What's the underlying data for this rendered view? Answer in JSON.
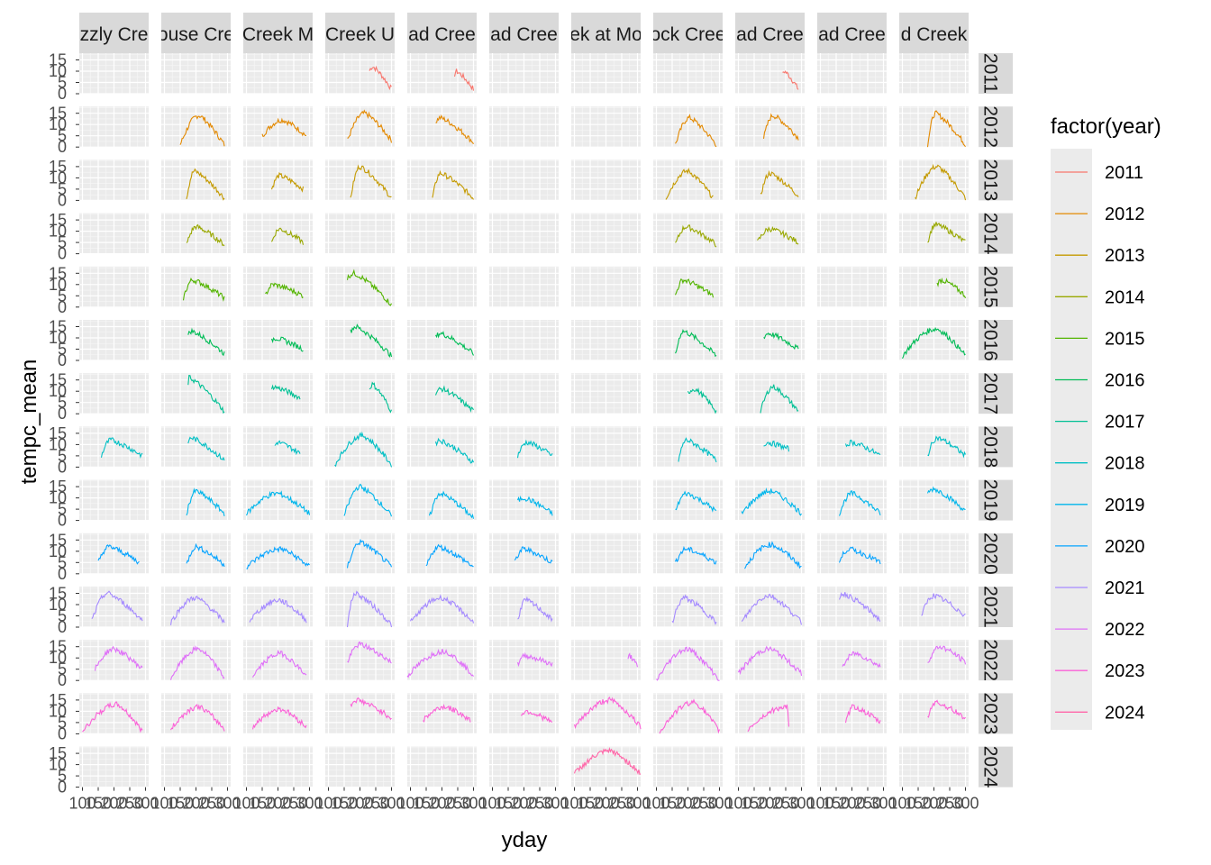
{
  "chart_data": {
    "type": "line",
    "xlabel": "yday",
    "ylabel": "tempc_mean",
    "legend_title": "factor(year)",
    "legend_position": "right",
    "grid": true,
    "x_ticks": [
      "100",
      "150",
      "200",
      "250",
      "300"
    ],
    "y_ticks": [
      "0",
      "5",
      "10",
      "15"
    ],
    "xlim": [
      90,
      310
    ],
    "ylim": [
      0,
      18
    ],
    "column_strips": [
      "zzly Cre",
      "ouse Cre",
      "Creek M",
      "Creek U",
      "ad Cree",
      "ad Cree",
      "ek at Mo",
      "ock Cree",
      "ad Cree",
      "ad Cree",
      "d Creek"
    ],
    "row_strips": [
      "2011",
      "2012",
      "2013",
      "2014",
      "2015",
      "2016",
      "2017",
      "2018",
      "2019",
      "2020",
      "2021",
      "2022",
      "2023",
      "2024"
    ],
    "series": [
      {
        "name": "2011",
        "color": "#F8766D"
      },
      {
        "name": "2012",
        "color": "#E38900"
      },
      {
        "name": "2013",
        "color": "#C49A00"
      },
      {
        "name": "2014",
        "color": "#99A800"
      },
      {
        "name": "2015",
        "color": "#53B400"
      },
      {
        "name": "2016",
        "color": "#00BC56"
      },
      {
        "name": "2017",
        "color": "#00C094"
      },
      {
        "name": "2018",
        "color": "#00BFC4"
      },
      {
        "name": "2019",
        "color": "#00B6EB"
      },
      {
        "name": "2020",
        "color": "#06A4FF"
      },
      {
        "name": "2021",
        "color": "#A58AFF"
      },
      {
        "name": "2022",
        "color": "#DF70F8"
      },
      {
        "name": "2023",
        "color": "#FB61D7"
      },
      {
        "name": "2024",
        "color": "#FF66A8"
      }
    ],
    "panels": [
      {
        "row": 0,
        "col": 3,
        "start": 230,
        "end": 300,
        "peak_x": 240,
        "peak_y": 12,
        "base": 2
      },
      {
        "row": 0,
        "col": 4,
        "start": 240,
        "end": 300,
        "peak_x": 245,
        "peak_y": 10,
        "base": 2
      },
      {
        "row": 0,
        "col": 8,
        "start": 240,
        "end": 290,
        "peak_x": 245,
        "peak_y": 10,
        "base": 2
      },
      {
        "row": 1,
        "col": 1,
        "start": 150,
        "end": 290,
        "peak_x": 210,
        "peak_y": 14,
        "base": 1
      },
      {
        "row": 1,
        "col": 2,
        "start": 150,
        "end": 290,
        "peak_x": 215,
        "peak_y": 12,
        "base": 5
      },
      {
        "row": 1,
        "col": 3,
        "start": 160,
        "end": 300,
        "peak_x": 215,
        "peak_y": 15,
        "base": 3
      },
      {
        "row": 1,
        "col": 4,
        "start": 180,
        "end": 300,
        "peak_x": 195,
        "peak_y": 13,
        "base": 2
      },
      {
        "row": 1,
        "col": 7,
        "start": 160,
        "end": 290,
        "peak_x": 205,
        "peak_y": 13,
        "base": 1
      },
      {
        "row": 1,
        "col": 8,
        "start": 180,
        "end": 290,
        "peak_x": 210,
        "peak_y": 14,
        "base": 4
      },
      {
        "row": 1,
        "col": 10,
        "start": 180,
        "end": 300,
        "peak_x": 205,
        "peak_y": 15,
        "base": 1
      },
      {
        "row": 2,
        "col": 1,
        "start": 170,
        "end": 290,
        "peak_x": 195,
        "peak_y": 13,
        "base": 1
      },
      {
        "row": 2,
        "col": 2,
        "start": 180,
        "end": 280,
        "peak_x": 205,
        "peak_y": 11,
        "base": 5
      },
      {
        "row": 2,
        "col": 3,
        "start": 170,
        "end": 300,
        "peak_x": 200,
        "peak_y": 15,
        "base": 1
      },
      {
        "row": 2,
        "col": 4,
        "start": 170,
        "end": 300,
        "peak_x": 195,
        "peak_y": 12,
        "base": 1
      },
      {
        "row": 2,
        "col": 7,
        "start": 130,
        "end": 280,
        "peak_x": 200,
        "peak_y": 13,
        "base": 1
      },
      {
        "row": 2,
        "col": 8,
        "start": 170,
        "end": 290,
        "peak_x": 200,
        "peak_y": 12,
        "base": 2
      },
      {
        "row": 2,
        "col": 10,
        "start": 140,
        "end": 300,
        "peak_x": 210,
        "peak_y": 15,
        "base": 1
      },
      {
        "row": 3,
        "col": 1,
        "start": 170,
        "end": 290,
        "peak_x": 200,
        "peak_y": 12,
        "base": 4
      },
      {
        "row": 3,
        "col": 2,
        "start": 180,
        "end": 280,
        "peak_x": 205,
        "peak_y": 11,
        "base": 5
      },
      {
        "row": 3,
        "col": 7,
        "start": 160,
        "end": 290,
        "peak_x": 195,
        "peak_y": 12,
        "base": 4
      },
      {
        "row": 3,
        "col": 8,
        "start": 160,
        "end": 290,
        "peak_x": 200,
        "peak_y": 11,
        "base": 5
      },
      {
        "row": 3,
        "col": 10,
        "start": 180,
        "end": 300,
        "peak_x": 205,
        "peak_y": 13,
        "base": 5
      },
      {
        "row": 4,
        "col": 1,
        "start": 160,
        "end": 290,
        "peak_x": 190,
        "peak_y": 12,
        "base": 4
      },
      {
        "row": 4,
        "col": 2,
        "start": 160,
        "end": 280,
        "peak_x": 185,
        "peak_y": 10,
        "base": 5
      },
      {
        "row": 4,
        "col": 3,
        "start": 160,
        "end": 300,
        "peak_x": 180,
        "peak_y": 15,
        "base": 1
      },
      {
        "row": 4,
        "col": 7,
        "start": 160,
        "end": 280,
        "peak_x": 185,
        "peak_y": 12,
        "base": 5
      },
      {
        "row": 4,
        "col": 10,
        "start": 210,
        "end": 300,
        "peak_x": 225,
        "peak_y": 12,
        "base": 5
      },
      {
        "row": 5,
        "col": 1,
        "start": 175,
        "end": 290,
        "peak_x": 185,
        "peak_y": 13,
        "base": 3
      },
      {
        "row": 5,
        "col": 2,
        "start": 180,
        "end": 280,
        "peak_x": 190,
        "peak_y": 10,
        "base": 5
      },
      {
        "row": 5,
        "col": 3,
        "start": 170,
        "end": 300,
        "peak_x": 185,
        "peak_y": 15,
        "base": 2
      },
      {
        "row": 5,
        "col": 4,
        "start": 180,
        "end": 300,
        "peak_x": 195,
        "peak_y": 12,
        "base": 3
      },
      {
        "row": 5,
        "col": 7,
        "start": 160,
        "end": 290,
        "peak_x": 185,
        "peak_y": 13,
        "base": 2
      },
      {
        "row": 5,
        "col": 8,
        "start": 180,
        "end": 290,
        "peak_x": 195,
        "peak_y": 12,
        "base": 5
      },
      {
        "row": 5,
        "col": 10,
        "start": 100,
        "end": 300,
        "peak_x": 210,
        "peak_y": 14,
        "base": 2
      },
      {
        "row": 6,
        "col": 1,
        "start": 175,
        "end": 290,
        "peak_x": 178,
        "peak_y": 16,
        "base": 1
      },
      {
        "row": 6,
        "col": 2,
        "start": 180,
        "end": 270,
        "peak_x": 185,
        "peak_y": 12,
        "base": 7
      },
      {
        "row": 6,
        "col": 3,
        "start": 230,
        "end": 300,
        "peak_x": 240,
        "peak_y": 13,
        "base": 1
      },
      {
        "row": 6,
        "col": 4,
        "start": 180,
        "end": 300,
        "peak_x": 200,
        "peak_y": 11,
        "base": 1
      },
      {
        "row": 6,
        "col": 7,
        "start": 200,
        "end": 290,
        "peak_x": 220,
        "peak_y": 11,
        "base": 1
      },
      {
        "row": 6,
        "col": 8,
        "start": 170,
        "end": 290,
        "peak_x": 210,
        "peak_y": 12,
        "base": 1
      },
      {
        "row": 7,
        "col": 0,
        "start": 160,
        "end": 290,
        "peak_x": 190,
        "peak_y": 12,
        "base": 5
      },
      {
        "row": 7,
        "col": 1,
        "start": 175,
        "end": 290,
        "peak_x": 185,
        "peak_y": 13,
        "base": 3
      },
      {
        "row": 7,
        "col": 2,
        "start": 190,
        "end": 270,
        "peak_x": 200,
        "peak_y": 11,
        "base": 6
      },
      {
        "row": 7,
        "col": 3,
        "start": 120,
        "end": 300,
        "peak_x": 210,
        "peak_y": 14,
        "base": 1
      },
      {
        "row": 7,
        "col": 4,
        "start": 180,
        "end": 300,
        "peak_x": 190,
        "peak_y": 12,
        "base": 2
      },
      {
        "row": 7,
        "col": 5,
        "start": 180,
        "end": 290,
        "peak_x": 210,
        "peak_y": 11,
        "base": 5
      },
      {
        "row": 7,
        "col": 7,
        "start": 170,
        "end": 290,
        "peak_x": 195,
        "peak_y": 12,
        "base": 3
      },
      {
        "row": 7,
        "col": 8,
        "start": 180,
        "end": 260,
        "peak_x": 190,
        "peak_y": 11,
        "base": 8
      },
      {
        "row": 7,
        "col": 9,
        "start": 180,
        "end": 290,
        "peak_x": 200,
        "peak_y": 11,
        "base": 5
      },
      {
        "row": 7,
        "col": 10,
        "start": 180,
        "end": 300,
        "peak_x": 210,
        "peak_y": 13,
        "base": 5
      },
      {
        "row": 8,
        "col": 1,
        "start": 170,
        "end": 290,
        "peak_x": 200,
        "peak_y": 13,
        "base": 3
      },
      {
        "row": 8,
        "col": 2,
        "start": 100,
        "end": 300,
        "peak_x": 200,
        "peak_y": 12,
        "base": 3
      },
      {
        "row": 8,
        "col": 3,
        "start": 150,
        "end": 300,
        "peak_x": 200,
        "peak_y": 15,
        "base": 2
      },
      {
        "row": 8,
        "col": 4,
        "start": 160,
        "end": 300,
        "peak_x": 195,
        "peak_y": 12,
        "base": 1
      },
      {
        "row": 8,
        "col": 5,
        "start": 180,
        "end": 290,
        "peak_x": 200,
        "peak_y": 10,
        "base": 3
      },
      {
        "row": 8,
        "col": 7,
        "start": 160,
        "end": 290,
        "peak_x": 195,
        "peak_y": 12,
        "base": 4
      },
      {
        "row": 8,
        "col": 8,
        "start": 110,
        "end": 300,
        "peak_x": 205,
        "peak_y": 13,
        "base": 3
      },
      {
        "row": 8,
        "col": 9,
        "start": 160,
        "end": 290,
        "peak_x": 200,
        "peak_y": 12,
        "base": 3
      },
      {
        "row": 8,
        "col": 10,
        "start": 180,
        "end": 300,
        "peak_x": 200,
        "peak_y": 14,
        "base": 4
      },
      {
        "row": 9,
        "col": 0,
        "start": 150,
        "end": 280,
        "peak_x": 185,
        "peak_y": 12,
        "base": 5
      },
      {
        "row": 9,
        "col": 1,
        "start": 170,
        "end": 290,
        "peak_x": 200,
        "peak_y": 12,
        "base": 4
      },
      {
        "row": 9,
        "col": 2,
        "start": 100,
        "end": 300,
        "peak_x": 210,
        "peak_y": 11,
        "base": 3
      },
      {
        "row": 9,
        "col": 3,
        "start": 160,
        "end": 300,
        "peak_x": 200,
        "peak_y": 14,
        "base": 3
      },
      {
        "row": 9,
        "col": 4,
        "start": 150,
        "end": 300,
        "peak_x": 190,
        "peak_y": 12,
        "base": 3
      },
      {
        "row": 9,
        "col": 5,
        "start": 170,
        "end": 290,
        "peak_x": 200,
        "peak_y": 11,
        "base": 5
      },
      {
        "row": 9,
        "col": 7,
        "start": 160,
        "end": 290,
        "peak_x": 195,
        "peak_y": 11,
        "base": 5
      },
      {
        "row": 9,
        "col": 8,
        "start": 120,
        "end": 300,
        "peak_x": 205,
        "peak_y": 13,
        "base": 3
      },
      {
        "row": 9,
        "col": 9,
        "start": 160,
        "end": 290,
        "peak_x": 190,
        "peak_y": 11,
        "base": 5
      },
      {
        "row": 10,
        "col": 0,
        "start": 130,
        "end": 290,
        "peak_x": 180,
        "peak_y": 15,
        "base": 3
      },
      {
        "row": 10,
        "col": 1,
        "start": 120,
        "end": 290,
        "peak_x": 200,
        "peak_y": 13,
        "base": 2
      },
      {
        "row": 10,
        "col": 2,
        "start": 110,
        "end": 290,
        "peak_x": 205,
        "peak_y": 12,
        "base": 3
      },
      {
        "row": 10,
        "col": 3,
        "start": 160,
        "end": 300,
        "peak_x": 185,
        "peak_y": 15,
        "base": 1
      },
      {
        "row": 10,
        "col": 4,
        "start": 100,
        "end": 300,
        "peak_x": 200,
        "peak_y": 13,
        "base": 2
      },
      {
        "row": 10,
        "col": 5,
        "start": 180,
        "end": 290,
        "peak_x": 205,
        "peak_y": 12,
        "base": 3
      },
      {
        "row": 10,
        "col": 7,
        "start": 150,
        "end": 290,
        "peak_x": 190,
        "peak_y": 13,
        "base": 2
      },
      {
        "row": 10,
        "col": 8,
        "start": 110,
        "end": 300,
        "peak_x": 200,
        "peak_y": 14,
        "base": 2
      },
      {
        "row": 10,
        "col": 9,
        "start": 160,
        "end": 290,
        "peak_x": 170,
        "peak_y": 15,
        "base": 3
      },
      {
        "row": 10,
        "col": 10,
        "start": 160,
        "end": 300,
        "peak_x": 200,
        "peak_y": 14,
        "base": 5
      },
      {
        "row": 11,
        "col": 0,
        "start": 140,
        "end": 290,
        "peak_x": 200,
        "peak_y": 14,
        "base": 5
      },
      {
        "row": 11,
        "col": 1,
        "start": 120,
        "end": 290,
        "peak_x": 210,
        "peak_y": 14,
        "base": 1
      },
      {
        "row": 11,
        "col": 2,
        "start": 120,
        "end": 290,
        "peak_x": 210,
        "peak_y": 12,
        "base": 2
      },
      {
        "row": 11,
        "col": 3,
        "start": 160,
        "end": 300,
        "peak_x": 200,
        "peak_y": 16,
        "base": 8
      },
      {
        "row": 11,
        "col": 4,
        "start": 90,
        "end": 300,
        "peak_x": 210,
        "peak_y": 13,
        "base": 2
      },
      {
        "row": 11,
        "col": 5,
        "start": 180,
        "end": 290,
        "peak_x": 205,
        "peak_y": 11,
        "base": 7
      },
      {
        "row": 11,
        "col": 6,
        "start": 270,
        "end": 300,
        "peak_x": 275,
        "peak_y": 11,
        "base": 6
      },
      {
        "row": 11,
        "col": 7,
        "start": 100,
        "end": 300,
        "peak_x": 200,
        "peak_y": 14,
        "base": 0
      },
      {
        "row": 11,
        "col": 8,
        "start": 100,
        "end": 300,
        "peak_x": 200,
        "peak_y": 14,
        "base": 3
      },
      {
        "row": 11,
        "col": 9,
        "start": 170,
        "end": 290,
        "peak_x": 210,
        "peak_y": 12,
        "base": 6
      },
      {
        "row": 11,
        "col": 10,
        "start": 180,
        "end": 300,
        "peak_x": 220,
        "peak_y": 15,
        "base": 8
      },
      {
        "row": 12,
        "col": 0,
        "start": 100,
        "end": 290,
        "peak_x": 210,
        "peak_y": 13,
        "base": 1
      },
      {
        "row": 12,
        "col": 1,
        "start": 120,
        "end": 290,
        "peak_x": 210,
        "peak_y": 12,
        "base": 2
      },
      {
        "row": 12,
        "col": 2,
        "start": 120,
        "end": 290,
        "peak_x": 210,
        "peak_y": 11,
        "base": 3
      },
      {
        "row": 12,
        "col": 3,
        "start": 170,
        "end": 300,
        "peak_x": 190,
        "peak_y": 15,
        "base": 7
      },
      {
        "row": 12,
        "col": 4,
        "start": 140,
        "end": 290,
        "peak_x": 210,
        "peak_y": 12,
        "base": 6
      },
      {
        "row": 12,
        "col": 5,
        "start": 190,
        "end": 290,
        "peak_x": 210,
        "peak_y": 10,
        "base": 5
      },
      {
        "row": 12,
        "col": 6,
        "start": 100,
        "end": 310,
        "peak_x": 215,
        "peak_y": 15,
        "base": 3
      },
      {
        "row": 12,
        "col": 7,
        "start": 110,
        "end": 300,
        "peak_x": 220,
        "peak_y": 14,
        "base": 1
      },
      {
        "row": 12,
        "col": 8,
        "start": 130,
        "end": 260,
        "peak_x": 255,
        "peak_y": 12,
        "base": 2
      },
      {
        "row": 12,
        "col": 9,
        "start": 180,
        "end": 290,
        "peak_x": 205,
        "peak_y": 12,
        "base": 5
      },
      {
        "row": 12,
        "col": 10,
        "start": 180,
        "end": 300,
        "peak_x": 205,
        "peak_y": 14,
        "base": 7
      },
      {
        "row": 13,
        "col": 6,
        "start": 100,
        "end": 310,
        "peak_x": 215,
        "peak_y": 16,
        "base": 6
      }
    ]
  }
}
